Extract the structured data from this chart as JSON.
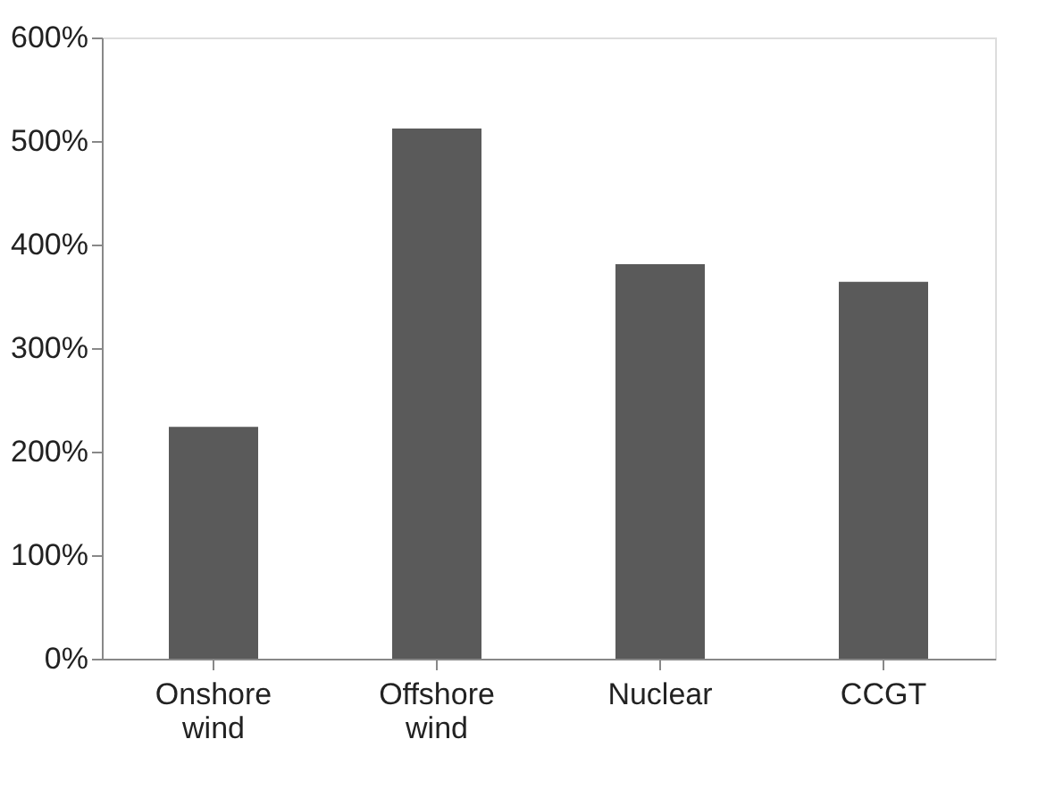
{
  "chart_data": {
    "type": "bar",
    "categories": [
      "Onshore wind",
      "Offshore wind",
      "Nuclear",
      "CCGT"
    ],
    "values": [
      224,
      512,
      381,
      364
    ],
    "color": "#5a5a5a",
    "ylim": [
      0,
      600
    ],
    "yticks": [
      {
        "value": 0,
        "label": "0%"
      },
      {
        "value": 100,
        "label": "100%"
      },
      {
        "value": 200,
        "label": "200%"
      },
      {
        "value": 300,
        "label": "300%"
      },
      {
        "value": 400,
        "label": "400%"
      },
      {
        "value": 500,
        "label": "500%"
      },
      {
        "value": 600,
        "label": "600%"
      }
    ],
    "grid": false
  }
}
